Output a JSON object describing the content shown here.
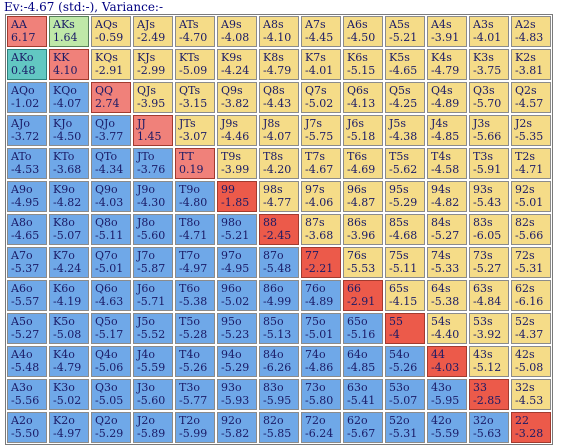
{
  "summary": {
    "text": "Ev:-4.67 (std:-), Variance:-"
  },
  "ranks": [
    "A",
    "K",
    "Q",
    "J",
    "T",
    "9",
    "8",
    "7",
    "6",
    "5",
    "4",
    "3",
    "2"
  ],
  "ev_grid": [
    [
      "6.17",
      "1.64",
      "-0.59",
      "-2.49",
      "-4.70",
      "-4.08",
      "-4.10",
      "-4.45",
      "-4.50",
      "-5.21",
      "-3.91",
      "-4.01",
      "-4.83"
    ],
    [
      "0.48",
      "4.10",
      "-2.91",
      "-2.99",
      "-5.09",
      "-4.24",
      "-4.79",
      "-4.01",
      "-5.15",
      "-4.65",
      "-4.79",
      "-3.75",
      "-3.81"
    ],
    [
      "-1.02",
      "-4.07",
      "2.74",
      "-3.95",
      "-3.15",
      "-3.82",
      "-4.43",
      "-5.02",
      "-4.13",
      "-4.25",
      "-4.89",
      "-5.70",
      "-4.57"
    ],
    [
      "-3.72",
      "-4.50",
      "-3.77",
      "1.45",
      "-3.07",
      "-4.46",
      "-4.07",
      "-5.75",
      "-5.18",
      "-4.38",
      "-4.85",
      "-5.66",
      "-5.35"
    ],
    [
      "-4.53",
      "-3.68",
      "-4.34",
      "-3.76",
      "0.19",
      "-3.99",
      "-4.20",
      "-4.67",
      "-4.69",
      "-5.62",
      "-4.58",
      "-5.91",
      "-4.71"
    ],
    [
      "-4.95",
      "-4.82",
      "-4.03",
      "-4.30",
      "-4.80",
      "-1.85",
      "-4.77",
      "-4.06",
      "-4.87",
      "-5.29",
      "-4.82",
      "-5.43",
      "-5.01"
    ],
    [
      "-4.65",
      "-5.07",
      "-5.11",
      "-5.60",
      "-4.71",
      "-5.21",
      "-2.45",
      "-3.68",
      "-3.96",
      "-4.68",
      "-5.27",
      "-6.05",
      "-5.66"
    ],
    [
      "-5.37",
      "-4.24",
      "-5.01",
      "-5.87",
      "-4.97",
      "-4.95",
      "-5.48",
      "-2.21",
      "-5.53",
      "-5.11",
      "-5.33",
      "-5.27",
      "-5.31"
    ],
    [
      "-5.57",
      "-4.19",
      "-4.63",
      "-5.71",
      "-5.38",
      "-5.02",
      "-4.99",
      "-4.89",
      "-2.91",
      "-4.15",
      "-5.38",
      "-4.84",
      "-6.16"
    ],
    [
      "-5.27",
      "-5.08",
      "-5.17",
      "-5.52",
      "-5.28",
      "-5.23",
      "-5.13",
      "-5.01",
      "-5.16",
      "-4",
      "-4.40",
      "-3.92",
      "-4.37"
    ],
    [
      "-5.48",
      "-4.79",
      "-5.06",
      "-5.59",
      "-5.26",
      "-5.29",
      "-6.26",
      "-4.86",
      "-4.85",
      "-5.26",
      "-4.03",
      "-5.12",
      "-5.08"
    ],
    [
      "-5.56",
      "-5.02",
      "-5.05",
      "-5.60",
      "-5.77",
      "-5.93",
      "-5.95",
      "-5.80",
      "-5.41",
      "-5.07",
      "-5.95",
      "-2.85",
      "-4.53"
    ],
    [
      "-5.50",
      "-4.97",
      "-5.29",
      "-5.89",
      "-5.99",
      "-5.82",
      "-5.85",
      "-6.24",
      "-5.67",
      "-5.31",
      "-5.59",
      "-5.63",
      "-3.28"
    ]
  ],
  "accent_cells": {
    "pair": [
      "0-0",
      "1-1",
      "2-2",
      "3-3",
      "4-4"
    ],
    "suited": [
      "0-1"
    ],
    "offsuit": [
      "1-0"
    ]
  },
  "colors": {
    "pair_suited": "#f5dc88",
    "offsuit": "#6fa8e8",
    "diagonal_highlight": "#ec5a4a",
    "accent_pair": "#f0817a",
    "accent_suited": "#bfe8a8",
    "accent_offsuit": "#62c7c2",
    "text": "#1a1a66"
  }
}
